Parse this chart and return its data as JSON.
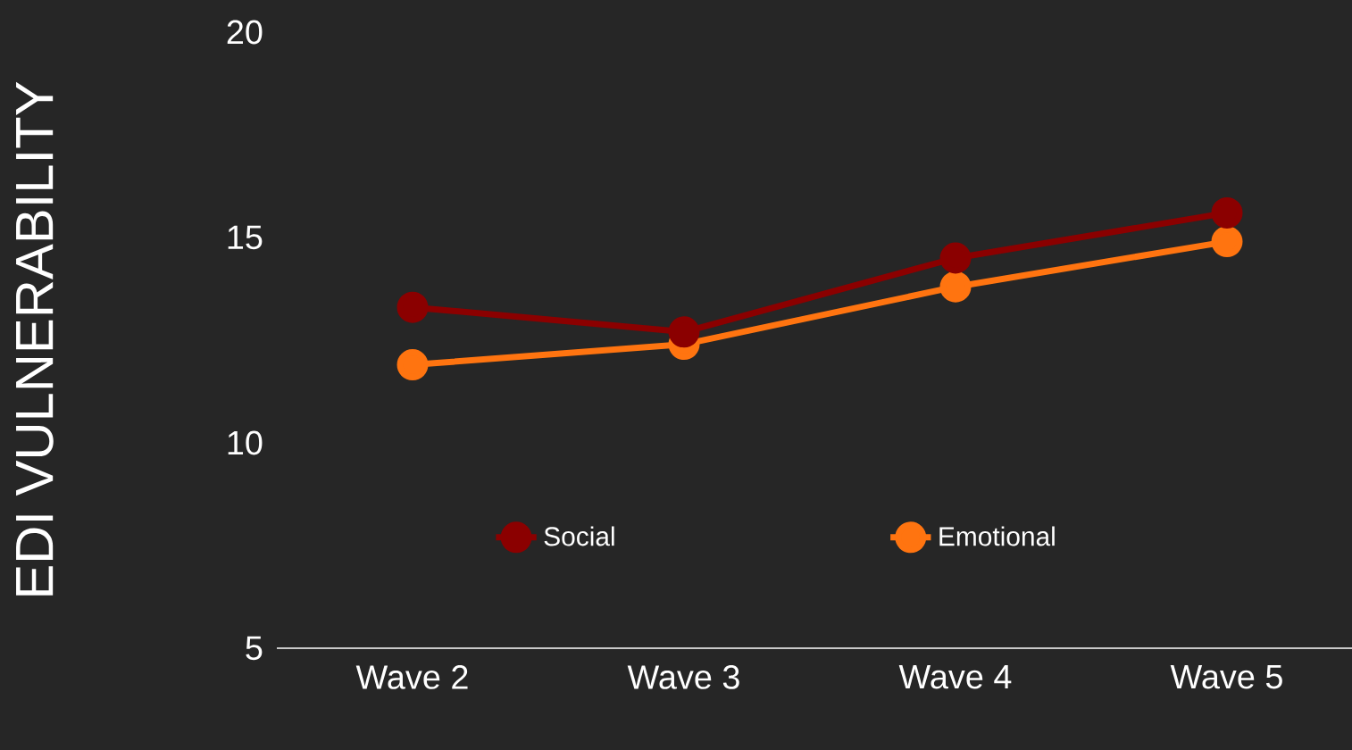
{
  "chart_data": {
    "type": "line",
    "ylabel": "EDI VULNERABILITY",
    "categories": [
      "Wave 2",
      "Wave 3",
      "Wave 4",
      "Wave 5"
    ],
    "series": [
      {
        "name": "Social",
        "color": "#8b0000",
        "values": [
          13.3,
          12.7,
          14.5,
          15.6
        ]
      },
      {
        "name": "Emotional",
        "color": "#ff7410",
        "values": [
          11.9,
          12.4,
          13.8,
          14.9
        ]
      }
    ],
    "ylim": [
      5,
      20
    ],
    "yticks": [
      5,
      10,
      15,
      20
    ],
    "grid": false,
    "legend": "bottom",
    "marker": "circle",
    "line_style": "solid"
  }
}
